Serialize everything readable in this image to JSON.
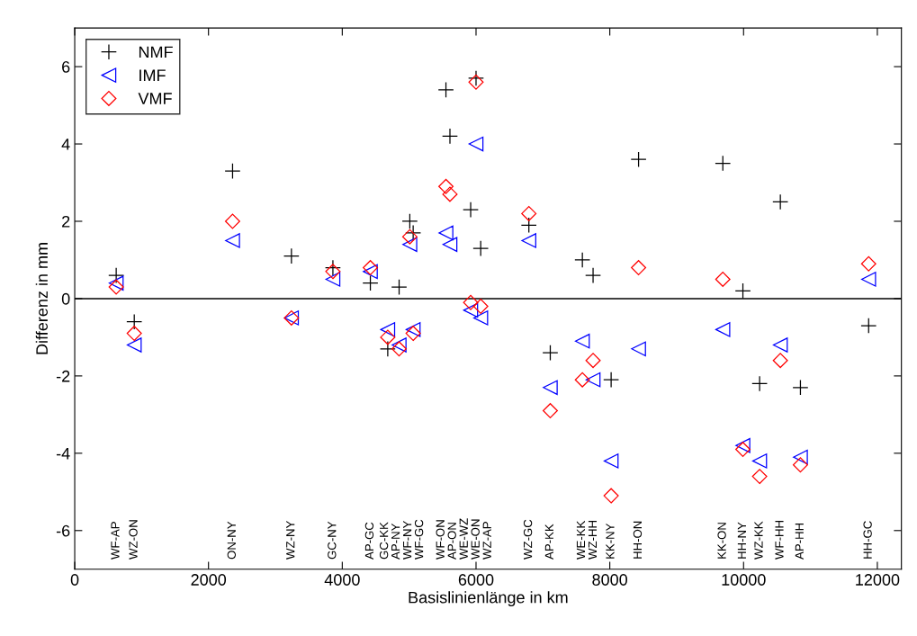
{
  "chart_data": {
    "type": "scatter",
    "xlabel": "Basislinienlänge in km",
    "ylabel": "Differenz in mm",
    "x": [
      620,
      890,
      2360,
      3240,
      3860,
      4420,
      4680,
      4850,
      5010,
      5060,
      5550,
      5610,
      5920,
      6000,
      6070,
      6790,
      7110,
      7590,
      7750,
      8020,
      8430,
      9690,
      9990,
      10240,
      10550,
      10850,
      11870
    ],
    "series": [
      {
        "name": "NMF",
        "color": "#000000",
        "marker": "cross",
        "values": [
          0.6,
          -0.6,
          3.3,
          1.1,
          0.8,
          0.4,
          -1.3,
          0.3,
          2.0,
          1.7,
          5.4,
          4.2,
          2.3,
          5.7,
          1.3,
          1.9,
          -1.4,
          1.0,
          0.6,
          -2.1,
          3.6,
          3.5,
          0.2,
          -2.2,
          2.5,
          -2.3,
          -0.7
        ]
      },
      {
        "name": "IMF",
        "color": "#0000ff",
        "marker": "triangle",
        "values": [
          0.4,
          -1.2,
          1.5,
          -0.5,
          0.5,
          0.7,
          -0.8,
          -1.2,
          1.4,
          -0.8,
          1.7,
          1.4,
          -0.3,
          4.0,
          -0.5,
          1.5,
          -2.3,
          -1.1,
          -2.1,
          -4.2,
          -1.3,
          -0.8,
          -3.8,
          -4.2,
          -1.2,
          -4.1,
          0.5
        ]
      },
      {
        "name": "VMF",
        "color": "#ff0000",
        "marker": "diamond",
        "values": [
          0.3,
          -0.9,
          2.0,
          -0.5,
          0.7,
          0.8,
          -1.0,
          -1.3,
          1.6,
          -0.9,
          2.9,
          2.7,
          -0.1,
          5.6,
          -0.2,
          2.2,
          -2.9,
          -2.1,
          -1.6,
          -5.1,
          0.8,
          0.5,
          -3.9,
          -4.6,
          -1.6,
          -4.3,
          0.9
        ]
      }
    ],
    "xlim": [
      0,
      12360
    ],
    "ylim": [
      -7,
      7
    ],
    "xticks": [
      0,
      2000,
      4000,
      6000,
      8000,
      10000,
      12000
    ],
    "yticks": [
      -6,
      -4,
      -2,
      0,
      2,
      4,
      6
    ],
    "ref_lines": [
      {
        "axis": "y",
        "value": 0,
        "color": "#000000"
      }
    ],
    "legend": "top left",
    "grid": false,
    "annotations": [
      "WF-AP",
      "WZ-ON",
      "ON-NY",
      "WZ-NY",
      "GC-NY",
      "AP-GC",
      "GC-KK",
      "AP-NY",
      "WF-NY",
      "WF-GC",
      "WF-ON",
      "AP-ON",
      "WE-WZ",
      "WE-ON",
      "WZ-AP",
      "WZ-GC",
      "AP-KK",
      "WE-KK",
      "WZ-HH",
      "KK-NY",
      "HH-ON",
      "KK-ON",
      "HH-NY",
      "WZ-KK",
      "WF-HH",
      "AP-HH",
      "HH-GC"
    ]
  }
}
